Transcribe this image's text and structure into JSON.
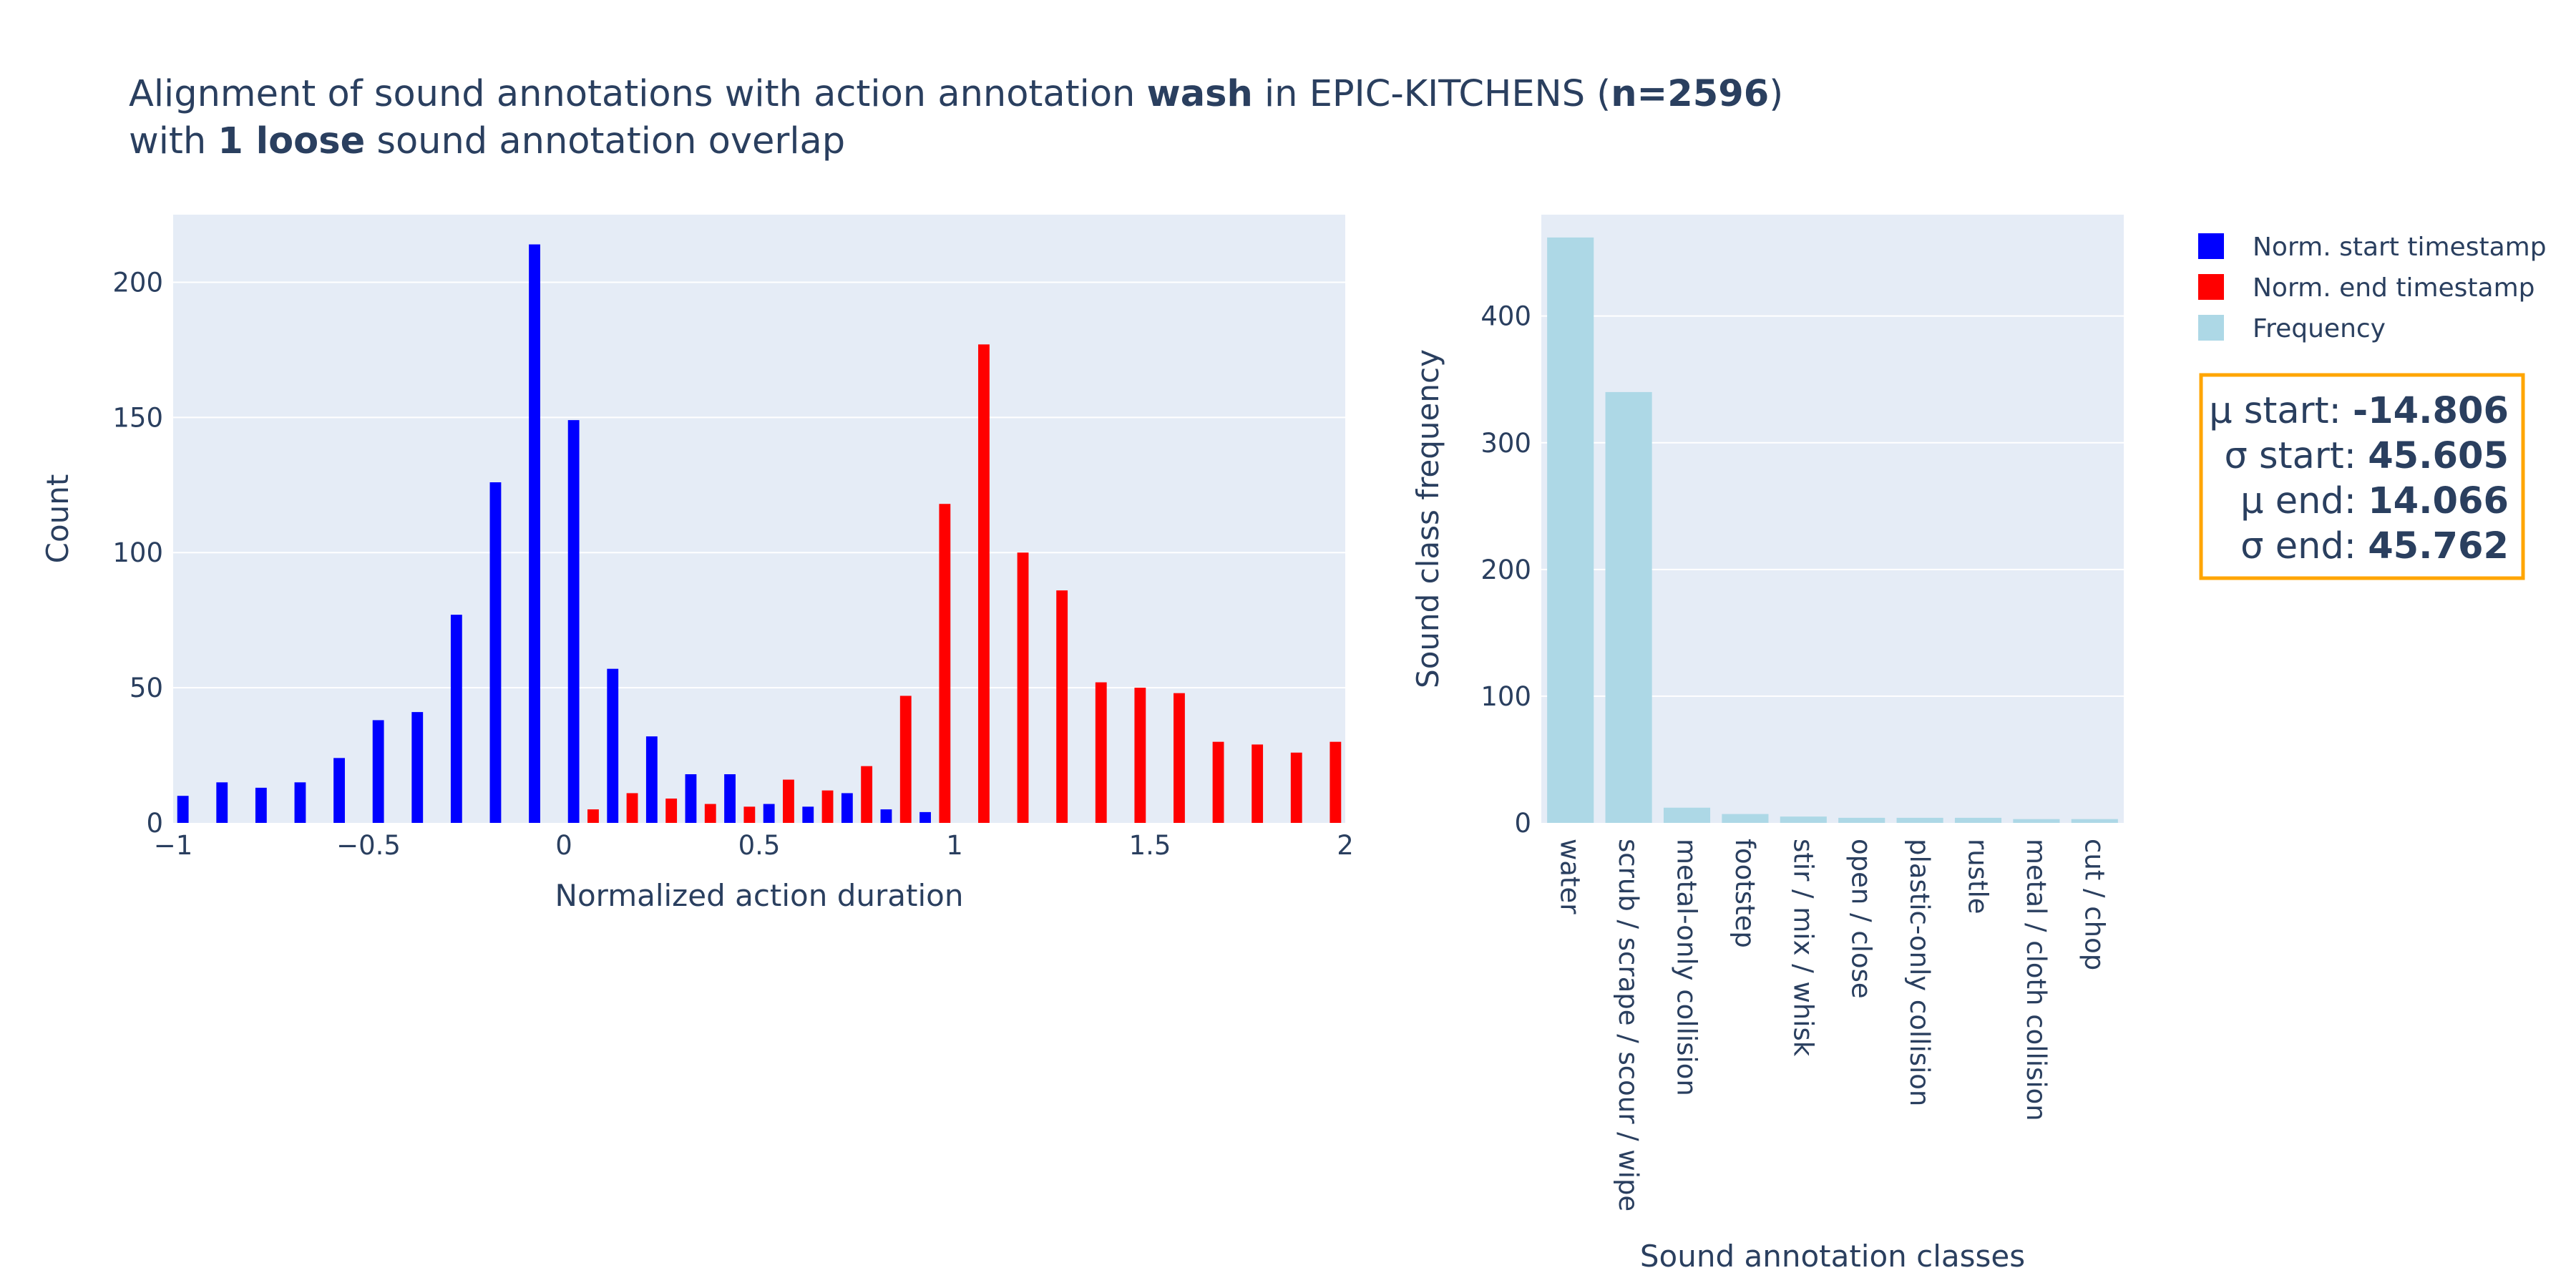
{
  "title": {
    "line1": {
      "pre": "Alignment of sound annotations with action annotation ",
      "b1": "wash",
      "mid": " in EPIC-KITCHENS (",
      "b2": "n=2596",
      "post": ")"
    },
    "line2": {
      "pre": "with ",
      "b1": "1 loose",
      "post": " sound annotation overlap"
    }
  },
  "colors": {
    "start": "#0000ff",
    "end": "#ff0000",
    "frequency": "#add8e6",
    "plot_bg": "#e5ecf6",
    "stats_border": "#ffa500",
    "text": "#2a3f5f"
  },
  "legend": [
    {
      "label": "Norm. start timestamp",
      "color": "#0000ff"
    },
    {
      "label": "Norm. end timestamp",
      "color": "#ff0000"
    },
    {
      "label": "Frequency",
      "color": "#add8e6"
    }
  ],
  "stats": [
    {
      "label": "μ start: ",
      "value": "-14.806"
    },
    {
      "label": "σ start: ",
      "value": "45.605"
    },
    {
      "label": "μ end: ",
      "value": "14.066"
    },
    {
      "label": "σ end: ",
      "value": "45.762"
    }
  ],
  "chart_data": [
    {
      "type": "bar",
      "xlabel": "Normalized action duration",
      "ylabel": "Count",
      "xlim": [
        -1,
        2
      ],
      "ylim": [
        0,
        225
      ],
      "xticks": [
        -1,
        -0.5,
        0,
        0.5,
        1,
        1.5,
        2
      ],
      "xtick_labels": [
        "−1",
        "−0.5",
        "0",
        "0.5",
        "1",
        "1.5",
        "2"
      ],
      "yticks": [
        0,
        50,
        100,
        150,
        200
      ],
      "ytick_labels": [
        "0",
        "50",
        "100",
        "150",
        "200"
      ],
      "grid": true,
      "bin_width": 0.1,
      "series": [
        {
          "name": "Norm. start timestamp",
          "x": [
            -0.95,
            -0.85,
            -0.75,
            -0.65,
            -0.55,
            -0.45,
            -0.35,
            -0.25,
            -0.15,
            -0.05,
            0.05,
            0.15,
            0.25,
            0.35,
            0.45,
            0.55,
            0.65,
            0.75,
            0.85,
            0.95
          ],
          "values": [
            10,
            15,
            13,
            15,
            24,
            38,
            41,
            77,
            126,
            214,
            149,
            57,
            32,
            18,
            18,
            7,
            6,
            11,
            5,
            4
          ]
        },
        {
          "name": "Norm. end timestamp",
          "x": [
            0.05,
            0.15,
            0.25,
            0.35,
            0.45,
            0.55,
            0.65,
            0.75,
            0.85,
            0.95,
            1.05,
            1.15,
            1.25,
            1.35,
            1.45,
            1.55,
            1.65,
            1.75,
            1.85,
            1.95
          ],
          "values": [
            5,
            11,
            9,
            7,
            6,
            16,
            12,
            21,
            47,
            118,
            177,
            100,
            86,
            52,
            50,
            48,
            30,
            29,
            26,
            30
          ]
        }
      ]
    },
    {
      "type": "bar",
      "xlabel": "Sound annotation classes",
      "ylabel": "Sound class frequency",
      "ylim": [
        0,
        480
      ],
      "yticks": [
        0,
        100,
        200,
        300,
        400
      ],
      "ytick_labels": [
        "0",
        "100",
        "200",
        "300",
        "400"
      ],
      "grid": true,
      "categories": [
        "water",
        "scrub / scrape / scour / wipe",
        "metal-only collision",
        "footstep",
        "stir / mix / whisk",
        "open / close",
        "plastic-only collision",
        "rustle",
        "metal / cloth collision",
        "cut / chop"
      ],
      "series": [
        {
          "name": "Frequency",
          "values": [
            462,
            340,
            12,
            7,
            5,
            4,
            4,
            4,
            3,
            3
          ]
        }
      ]
    }
  ]
}
